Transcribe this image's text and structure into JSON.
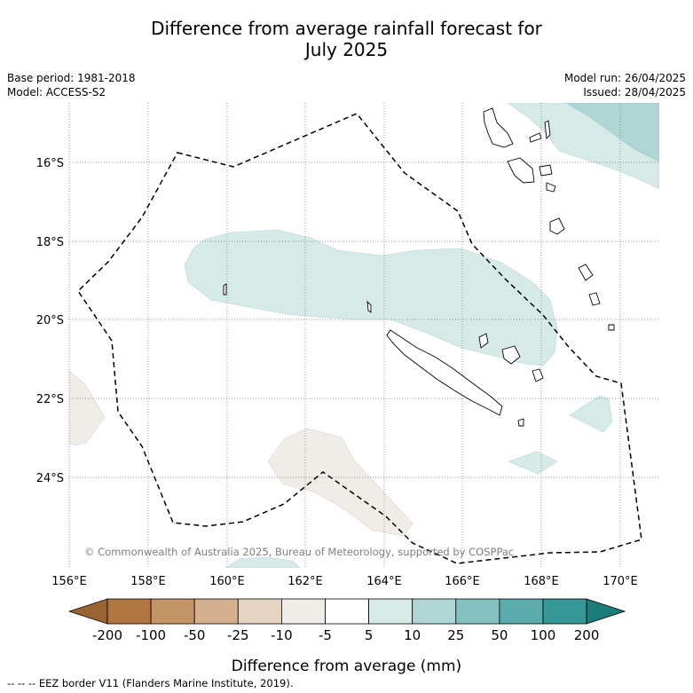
{
  "title_line1": "Difference from average rainfall forecast for",
  "title_line2": "July 2025",
  "base_period": "Base period: 1981-2018",
  "model": "Model: ACCESS-S2",
  "model_run": "Model run: 26/04/2025",
  "issued": "Issued: 28/04/2025",
  "copyright": "© Commonwealth of Australia 2025, Bureau of Meteorology, supported by COSPPac",
  "map": {
    "lon_labels": [
      "156°E",
      "158°E",
      "160°E",
      "162°E",
      "164°E",
      "166°E",
      "168°E",
      "170°E"
    ],
    "lat_labels": [
      "16°S",
      "18°S",
      "20°S",
      "22°S",
      "24°S"
    ],
    "extent": {
      "lon_min": 156,
      "lon_max": 171,
      "lat_min": -26.2,
      "lat_max": -14.5
    },
    "grid": true
  },
  "colorbar": {
    "ticks": [
      "-200",
      "-100",
      "-50",
      "-25",
      "-10",
      "-5",
      "5",
      "10",
      "25",
      "50",
      "100",
      "200"
    ],
    "colors": [
      "#9a6430",
      "#b07540",
      "#c39466",
      "#d5b090",
      "#e6d4c2",
      "#f0ede8",
      "#ffffff",
      "#d6eae8",
      "#afd5d5",
      "#85c1c0",
      "#5aabab",
      "#359896",
      "#1a7d7a"
    ],
    "label": "Difference from average (mm)"
  },
  "footnote": "-- -- -- EEZ border V11 (Flanders Marine Institute, 2019)."
}
